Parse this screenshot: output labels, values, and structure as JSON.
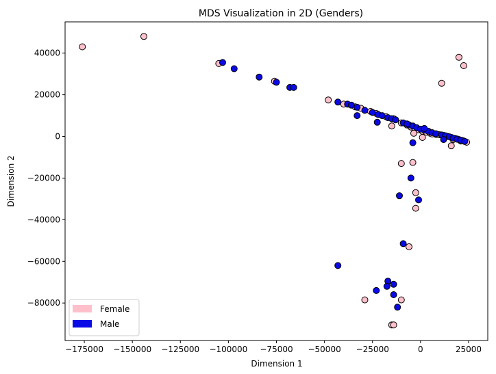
{
  "chart_data": {
    "type": "scatter",
    "title": "MDS Visualization in 2D (Genders)",
    "xlabel": "Dimension 1",
    "ylabel": "Dimension 2",
    "xlim": [
      -185000,
      35000
    ],
    "ylim": [
      -98000,
      55000
    ],
    "xticks": [
      -175000,
      -150000,
      -125000,
      -100000,
      -75000,
      -50000,
      -25000,
      0,
      25000
    ],
    "yticks": [
      -80000,
      -60000,
      -40000,
      -20000,
      0,
      20000,
      40000
    ],
    "grid": false,
    "legend_position": "lower-left",
    "series": [
      {
        "name": "Female",
        "color": "#ffc0cb",
        "points": [
          [
            -176000,
            43000
          ],
          [
            -144000,
            48000
          ],
          [
            -105000,
            35000
          ],
          [
            -76000,
            26500
          ],
          [
            -48000,
            17500
          ],
          [
            -40000,
            15500
          ],
          [
            -34000,
            14200
          ],
          [
            -31000,
            13500
          ],
          [
            -26000,
            12000
          ],
          [
            -23000,
            11000
          ],
          [
            -18000,
            9500
          ],
          [
            -14000,
            8500
          ],
          [
            -10000,
            6500
          ],
          [
            -7000,
            5500
          ],
          [
            -5000,
            4500
          ],
          [
            -3000,
            4000
          ],
          [
            -1000,
            3200
          ],
          [
            1000,
            2500
          ],
          [
            3000,
            2000
          ],
          [
            5000,
            1500
          ],
          [
            8000,
            1000
          ],
          [
            10000,
            800
          ],
          [
            12000,
            500
          ],
          [
            14000,
            0
          ],
          [
            16000,
            -500
          ],
          [
            18000,
            -1000
          ],
          [
            20000,
            -1500
          ],
          [
            22000,
            -2000
          ],
          [
            24000,
            -2800
          ],
          [
            17000,
            -1500
          ],
          [
            19000,
            -1200
          ],
          [
            21000,
            -2200
          ],
          [
            -15000,
            5000
          ],
          [
            -3500,
            1500
          ],
          [
            1000,
            -500
          ],
          [
            16000,
            -4500
          ],
          [
            11000,
            25500
          ],
          [
            20000,
            38000
          ],
          [
            22500,
            34000
          ],
          [
            -10000,
            -13000
          ],
          [
            -4000,
            -12500
          ],
          [
            -2500,
            -27000
          ],
          [
            -2500,
            -34500
          ],
          [
            -6000,
            -53000
          ],
          [
            -29000,
            -78500
          ],
          [
            -10000,
            -78500
          ],
          [
            -15000,
            -90500
          ],
          [
            -14000,
            -90500
          ],
          [
            6000,
            1200
          ],
          [
            9000,
            900
          ]
        ]
      },
      {
        "name": "Male",
        "color": "#0a0ae6",
        "points": [
          [
            -103000,
            35500
          ],
          [
            -97000,
            32500
          ],
          [
            -84000,
            28500
          ],
          [
            -75000,
            26000
          ],
          [
            -68000,
            23500
          ],
          [
            -66000,
            23500
          ],
          [
            -43000,
            16500
          ],
          [
            -38000,
            15500
          ],
          [
            -36000,
            15000
          ],
          [
            -33000,
            14000
          ],
          [
            -29000,
            12500
          ],
          [
            -25000,
            11500
          ],
          [
            -22000,
            10500
          ],
          [
            -20000,
            10000
          ],
          [
            -17000,
            9000
          ],
          [
            -15000,
            8500
          ],
          [
            -13000,
            8000
          ],
          [
            -9000,
            6500
          ],
          [
            -6000,
            5500
          ],
          [
            -4000,
            5000
          ],
          [
            -2000,
            4200
          ],
          [
            0,
            3500
          ],
          [
            2000,
            3000
          ],
          [
            4000,
            2500
          ],
          [
            6000,
            1800
          ],
          [
            8000,
            1300
          ],
          [
            11000,
            700
          ],
          [
            13000,
            300
          ],
          [
            15000,
            -200
          ],
          [
            17000,
            -800
          ],
          [
            19000,
            -1300
          ],
          [
            21000,
            -1800
          ],
          [
            23000,
            -2400
          ],
          [
            -33000,
            10000
          ],
          [
            -22500,
            6800
          ],
          [
            -4000,
            -3000
          ],
          [
            2000,
            3800
          ],
          [
            12000,
            -1500
          ],
          [
            -7000,
            6000
          ],
          [
            -5000,
            -20000
          ],
          [
            -11000,
            -28500
          ],
          [
            -1000,
            -30500
          ],
          [
            -9000,
            -51500
          ],
          [
            -43000,
            -62000
          ],
          [
            -17000,
            -69500
          ],
          [
            -14000,
            -71000
          ],
          [
            -17500,
            -72000
          ],
          [
            -23000,
            -74000
          ],
          [
            -14000,
            -76000
          ],
          [
            -12000,
            -82000
          ]
        ]
      }
    ]
  }
}
